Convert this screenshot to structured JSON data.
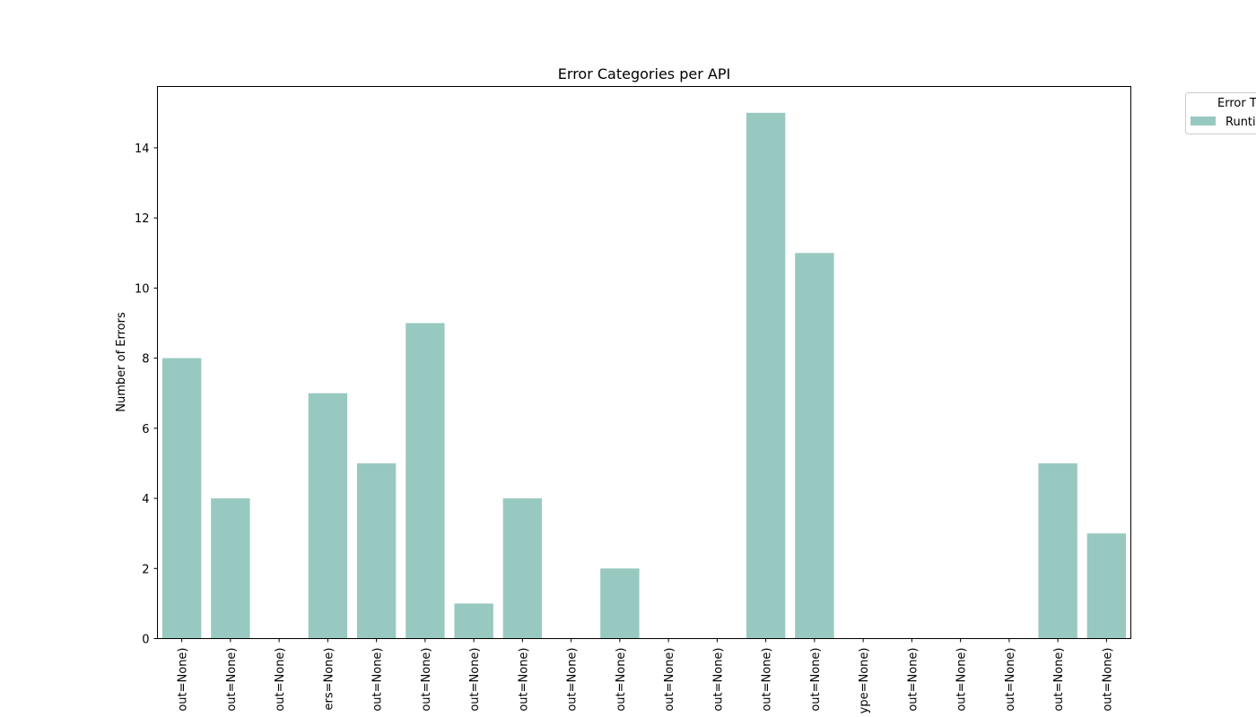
{
  "chart_data": {
    "type": "bar",
    "title": "Error Categories per API",
    "xlabel": "",
    "ylabel": "Number of Errors",
    "ylim": [
      0,
      15.75
    ],
    "yticks": [
      0,
      2,
      4,
      6,
      8,
      10,
      12,
      14
    ],
    "grid": false,
    "categories": [
      "out=None)",
      "out=None)",
      "out=None)",
      "ers=None)",
      "out=None)",
      "out=None)",
      "out=None)",
      "out=None)",
      "out=None)",
      "out=None)",
      "out=None)",
      "out=None)",
      "out=None)",
      "out=None)",
      "ype=None)",
      "out=None)",
      "out=None)",
      "out=None)",
      "out=None)",
      "out=None)"
    ],
    "series": [
      {
        "name": "Runti",
        "color": "#98c9c0",
        "values": [
          8,
          4,
          0,
          7,
          5,
          9,
          1,
          4,
          0,
          2,
          0,
          0,
          15,
          11,
          0,
          0,
          0,
          0,
          5,
          3
        ]
      }
    ],
    "legend": {
      "title": "Error T",
      "placement": "upper-right-outside"
    }
  }
}
